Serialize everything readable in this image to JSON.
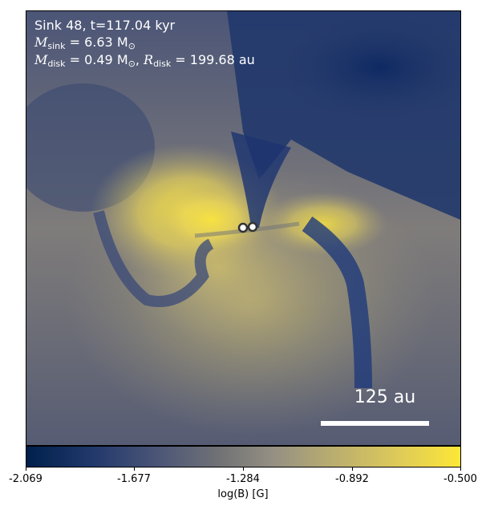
{
  "title_line1": "Sink 48, t=117.04 kyr",
  "mass_sink": {
    "symbol": "M",
    "subscript": "sink",
    "value_text": " = 6.63 M",
    "unit_sub": "⊙"
  },
  "disk": {
    "mass_symbol": "M",
    "mass_subscript": "disk",
    "mass_value_text": " = 0.49 M",
    "mass_unit_sub": "⊙",
    "radius_symbol": "R",
    "radius_subscript": "disk",
    "radius_value_text": " = 199.68 au"
  },
  "scale_bar_label": "125 au",
  "colorbar": {
    "label": "log(B) [G]",
    "ticks": [
      "-2.069",
      "-1.677",
      "-1.284",
      "-0.892",
      "-0.500"
    ],
    "range": [
      -2.069,
      -0.5
    ],
    "colormap": "cividis",
    "colors": [
      "#00204c",
      "#4b5577",
      "#727375",
      "#b8ac70",
      "#fde737"
    ]
  },
  "sinks": {
    "count": 2,
    "marker_fill": "#ffffff",
    "marker_edge": "#333333"
  }
}
